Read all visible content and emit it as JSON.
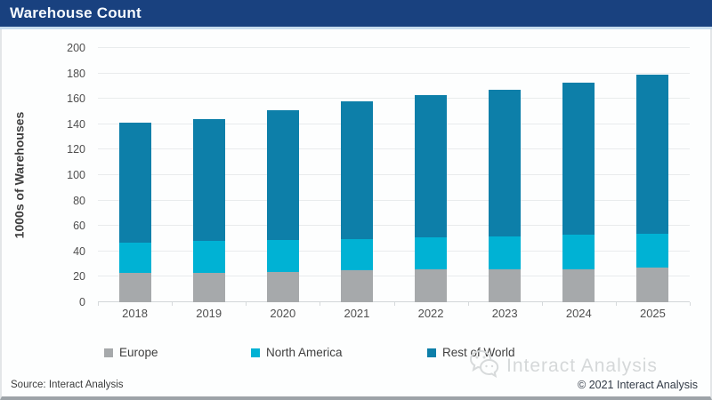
{
  "header": {
    "title": "Warehouse Count"
  },
  "chart_data": {
    "type": "bar",
    "stacked": true,
    "title": "Warehouse Count",
    "categories": [
      "2018",
      "2019",
      "2020",
      "2021",
      "2022",
      "2023",
      "2024",
      "2025"
    ],
    "series": [
      {
        "name": "Europe",
        "color": "#a6a9ab",
        "values": [
          23,
          23,
          24,
          25,
          26,
          26,
          26,
          27
        ]
      },
      {
        "name": "North America",
        "color": "#00b2d4",
        "values": [
          24,
          25,
          25,
          25,
          25,
          26,
          27,
          27
        ]
      },
      {
        "name": "Rest of World",
        "color": "#0d7fa9",
        "values": [
          94,
          96,
          102,
          108,
          112,
          115,
          120,
          125
        ]
      }
    ],
    "totals": [
      141,
      144,
      151,
      158,
      163,
      167,
      173,
      179
    ],
    "xlabel": "",
    "ylabel": "1000s of Warehouses",
    "ylim": [
      0,
      200
    ],
    "ytick_step": 20,
    "grid": "horizontal",
    "legend_position": "bottom"
  },
  "footer": {
    "source": "Source: Interact Analysis",
    "copyright": "© 2021 Interact Analysis"
  },
  "watermark": {
    "text": "Interact Analysis",
    "logo": "wechat-icon"
  },
  "colors": {
    "header_bg": "#19417f",
    "accent_strip": "#c7dcee",
    "gridline": "#e9eced",
    "axis_text": "#4f4f4f",
    "legend_text": "#3f3f3f",
    "watermark_text": "#d5d8d9"
  }
}
